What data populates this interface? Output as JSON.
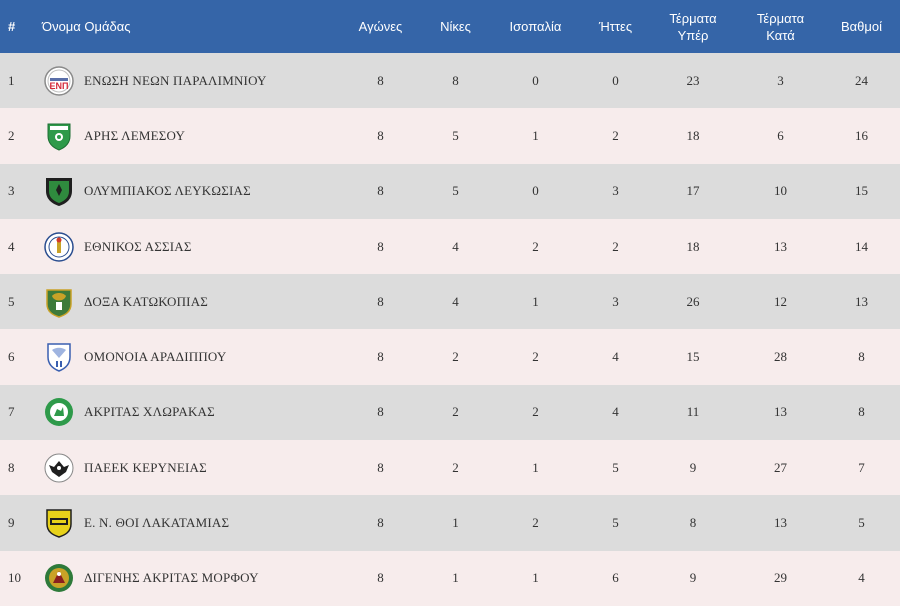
{
  "table": {
    "headers": {
      "pos": "#",
      "team": "Όνομα Ομάδας",
      "played": "Αγώνες",
      "wins": "Νίκες",
      "draws": "Ισοπαλία",
      "losses": "Ήττες",
      "goals_for_1": "Τέρματα",
      "goals_for_2": "Υπέρ",
      "goals_against_1": "Τέρματα",
      "goals_against_2": "Κατά",
      "points": "Βαθμοί"
    },
    "rows": [
      {
        "pos": "1",
        "team": "ΕΝΩΣΗ ΝΕΩΝ ΠΑΡΑΛΙΜΝΙΟΥ",
        "crest_icon": "enp-crest-icon",
        "played": "8",
        "wins": "8",
        "draws": "0",
        "losses": "0",
        "gf": "23",
        "ga": "3",
        "pts": "24"
      },
      {
        "pos": "2",
        "team": "ΑΡΗΣ ΛΕΜΕΣΟΥ",
        "crest_icon": "aris-crest-icon",
        "played": "8",
        "wins": "5",
        "draws": "1",
        "losses": "2",
        "gf": "18",
        "ga": "6",
        "pts": "16"
      },
      {
        "pos": "3",
        "team": "ΟΛΥΜΠΙΑΚΟΣ ΛΕΥΚΩΣΙΑΣ",
        "crest_icon": "olympiakos-crest-icon",
        "played": "8",
        "wins": "5",
        "draws": "0",
        "losses": "3",
        "gf": "17",
        "ga": "10",
        "pts": "15"
      },
      {
        "pos": "4",
        "team": "ΕΘΝΙΚΟΣ ΑΣΣΙΑΣ",
        "crest_icon": "ethnikos-crest-icon",
        "played": "8",
        "wins": "4",
        "draws": "2",
        "losses": "2",
        "gf": "18",
        "ga": "13",
        "pts": "14"
      },
      {
        "pos": "5",
        "team": "ΔΟΞΑ ΚΑΤΩΚΟΠΙΑΣ",
        "crest_icon": "doxa-crest-icon",
        "played": "8",
        "wins": "4",
        "draws": "1",
        "losses": "3",
        "gf": "26",
        "ga": "12",
        "pts": "13"
      },
      {
        "pos": "6",
        "team": "ΟΜΟΝΟΙΑ ΑΡΑΔΙΠΠΟΥ",
        "crest_icon": "omonoia-crest-icon",
        "played": "8",
        "wins": "2",
        "draws": "2",
        "losses": "4",
        "gf": "15",
        "ga": "28",
        "pts": "8"
      },
      {
        "pos": "7",
        "team": "ΑΚΡΙΤΑΣ ΧΛΩΡΑΚΑΣ",
        "crest_icon": "akritas-crest-icon",
        "played": "8",
        "wins": "2",
        "draws": "2",
        "losses": "4",
        "gf": "11",
        "ga": "13",
        "pts": "8"
      },
      {
        "pos": "8",
        "team": "ΠΑΕΕΚ ΚΕΡΥΝΕΙΑΣ",
        "crest_icon": "paeek-crest-icon",
        "played": "8",
        "wins": "2",
        "draws": "1",
        "losses": "5",
        "gf": "9",
        "ga": "27",
        "pts": "7"
      },
      {
        "pos": "9",
        "team": "Ε. Ν. ΘΟΙ ΛΑΚΑΤΑΜΙΑΣ",
        "crest_icon": "thoi-crest-icon",
        "played": "8",
        "wins": "1",
        "draws": "2",
        "losses": "5",
        "gf": "8",
        "ga": "13",
        "pts": "5"
      },
      {
        "pos": "10",
        "team": "ΔΙΓΕΝΗΣ ΑΚΡΙΤΑΣ ΜΟΡΦΟΥ",
        "crest_icon": "digenis-crest-icon",
        "played": "8",
        "wins": "1",
        "draws": "1",
        "losses": "6",
        "gf": "9",
        "ga": "29",
        "pts": "4"
      }
    ]
  },
  "colors": {
    "header_bg": "#3565a8",
    "row_odd": "#dcdcdc",
    "row_even": "#f7ecec"
  }
}
